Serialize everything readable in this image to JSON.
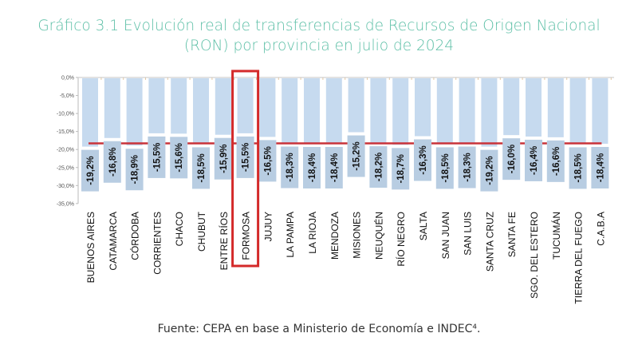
{
  "chart_data": {
    "type": "bar",
    "title_line1": "Gráfico 3.1 Evolución real de transferencias de Recursos de Origen Nacional",
    "title_line2": "(RON) por provincia en julio de 2024",
    "xlabel": "",
    "ylabel": "",
    "ylim": [
      -35,
      0
    ],
    "yticks": [
      0,
      -5,
      -10,
      -15,
      -20,
      -25,
      -30,
      -35
    ],
    "ytick_labels": [
      "0,0%",
      "-5,0%",
      "-10,0%",
      "-15,0%",
      "-20,0%",
      "-25,0%",
      "-30,0%",
      "-35,0%"
    ],
    "categories": [
      "BUENOS AIRES",
      "CATAMARCA",
      "CÓRDOBA",
      "CORRIENTES",
      "CHACO",
      "CHUBUT",
      "ENTRE RÍOS",
      "FORMOSA",
      "JUJUY",
      "LA PAMPA",
      "LA RIOJA",
      "MENDOZA",
      "MISIONES",
      "NEUQUÉN",
      "RÍO NEGRO",
      "SALTA",
      "SAN JUAN",
      "SAN LUIS",
      "SANTA CRUZ",
      "SANTA FE",
      "SGO. DEL ESTERO",
      "TUCUMÁN",
      "TIERRA DEL FUEGO",
      "C.A.B.A"
    ],
    "values": [
      -19.2,
      -16.8,
      -18.9,
      -15.5,
      -15.6,
      -18.5,
      -15.9,
      -15.5,
      -16.5,
      -18.3,
      -18.4,
      -18.4,
      -15.2,
      -18.2,
      -18.7,
      -16.3,
      -18.5,
      -18.3,
      -19.2,
      -16.0,
      -16.4,
      -16.6,
      -18.5,
      -18.4
    ],
    "data_labels": [
      "-19,2%",
      "-16,8%",
      "-18,9%",
      "-15,5%",
      "-15,6%",
      "-18,5%",
      "-15,9%",
      "-15,5%",
      "-16,5%",
      "-18,3%",
      "-18,4%",
      "-18,4%",
      "-15,2%",
      "-18,2%",
      "-18,7%",
      "-16,3%",
      "-18,5%",
      "-18,3%",
      "-19,2%",
      "-16,0%",
      "-16,4%",
      "-16,6%",
      "-18,5%",
      "-18,4%"
    ],
    "reference_line_value": -18.3,
    "highlighted_category": "FORMOSA",
    "grid": false,
    "colors": {
      "bar": "#c6daef",
      "label_box": "#b8cde2",
      "reference_line": "#c9333a",
      "highlight": "#d42a2a",
      "title": "#5cbfa6"
    }
  },
  "source": "Fuente: CEPA en base a Ministerio de Economía e INDEC⁴."
}
